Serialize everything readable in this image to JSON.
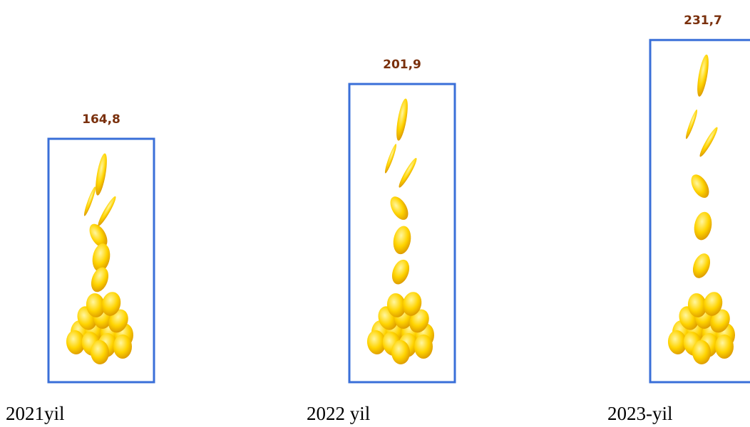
{
  "chart_data": {
    "type": "bar",
    "categories": [
      "2021yil",
      "2022 yil",
      "2023-yil"
    ],
    "values": [
      164.8,
      201.9,
      231.7
    ],
    "value_labels": [
      "164,8",
      "201,9",
      "231,7"
    ],
    "color": "#3a6fd8"
  }
}
